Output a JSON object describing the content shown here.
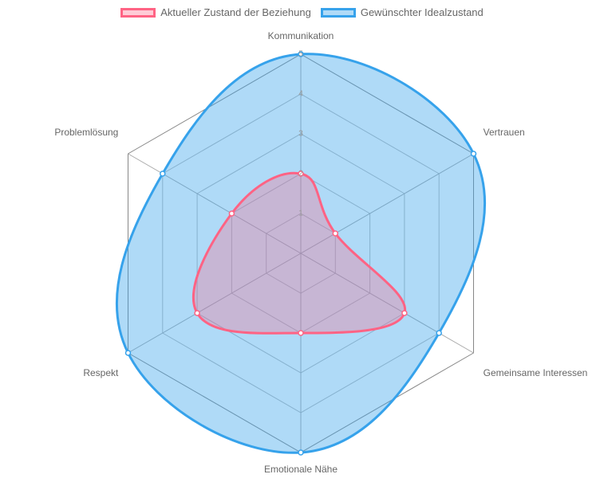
{
  "chart_data": {
    "type": "radar",
    "categories": [
      "Kommunikation",
      "Vertrauen",
      "Gemeinsame Interessen",
      "Emotionale Nähe",
      "Respekt",
      "Problemlösung"
    ],
    "series": [
      {
        "name": "Aktueller Zustand der Beziehung",
        "color": "#ff6384",
        "values": [
          2,
          1,
          3,
          2,
          3,
          2
        ]
      },
      {
        "name": "Gewünschter Idealzustand",
        "color": "#36a2eb",
        "values": [
          5,
          5,
          4,
          5,
          5,
          4
        ]
      }
    ],
    "rlim": [
      0,
      5
    ],
    "rticks": [
      1,
      2,
      3,
      4,
      5
    ],
    "grid": true,
    "legend": "top"
  }
}
